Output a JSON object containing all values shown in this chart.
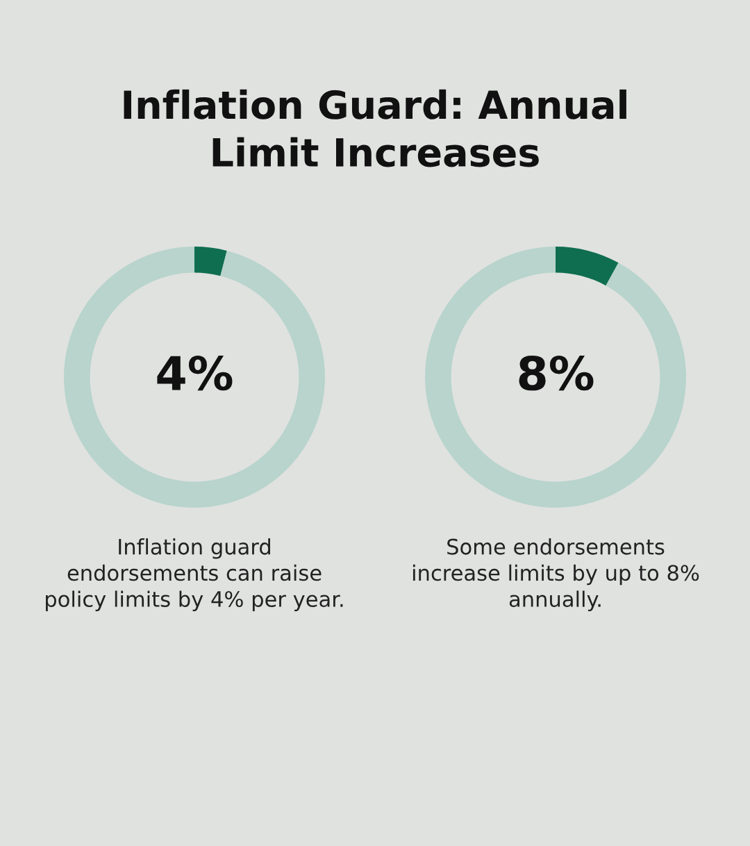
{
  "chart_data": [
    {
      "type": "donut",
      "title": "Inflation Guard: Annual Limit Increases",
      "categories": [
        null,
        null
      ],
      "values": [
        4,
        96
      ],
      "colors": [
        "#0f6e50",
        "#b8d4cc"
      ],
      "value_labels": [
        "4%",
        null
      ],
      "annotations": [
        "Inflation guard endorsements can raise policy limits by 4% per year."
      ]
    },
    {
      "type": "donut",
      "categories": [
        null,
        null
      ],
      "values": [
        8,
        92
      ],
      "colors": [
        "#0f6e50",
        "#b8d4cc"
      ],
      "value_labels": [
        "8%",
        null
      ],
      "annotations": [
        "Some endorsements increase limits by up to 8% annually."
      ]
    }
  ]
}
